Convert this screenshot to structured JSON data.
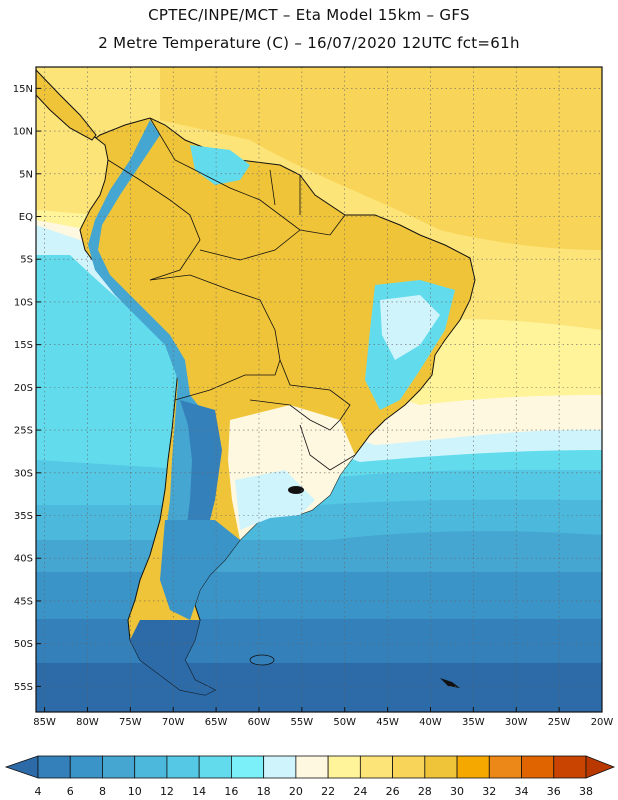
{
  "header": {
    "line1": "CPTEC/INPE/MCT –  Eta Model 15km – GFS",
    "line2": "2 Metre Temperature (C) – 16/07/2020 12UTC fct=61h"
  },
  "map": {
    "lat_labels": [
      "15N",
      "10N",
      "5N",
      "EQ",
      "5S",
      "10S",
      "15S",
      "20S",
      "25S",
      "30S",
      "35S",
      "40S",
      "45S",
      "50S",
      "55S"
    ],
    "lat_values": [
      15,
      10,
      5,
      0,
      -5,
      -10,
      -15,
      -20,
      -25,
      -30,
      -35,
      -40,
      -45,
      -50,
      -55
    ],
    "lon_labels": [
      "85W",
      "80W",
      "75W",
      "70W",
      "65W",
      "60W",
      "55W",
      "50W",
      "45W",
      "40W",
      "35W",
      "30W",
      "25W",
      "20W"
    ],
    "lon_values": [
      -85,
      -80,
      -75,
      -70,
      -65,
      -60,
      -55,
      -50,
      -45,
      -40,
      -35,
      -30,
      -25,
      -20
    ],
    "lat_range": [
      -58,
      17.5
    ],
    "lon_range": [
      -86,
      -20
    ]
  },
  "colorbar": {
    "labels": [
      "4",
      "6",
      "8",
      "10",
      "12",
      "14",
      "16",
      "18",
      "20",
      "22",
      "24",
      "26",
      "28",
      "30",
      "32",
      "34",
      "36",
      "38"
    ],
    "colors": [
      "#2c6aa8",
      "#3480ba",
      "#3b94c8",
      "#45a6d2",
      "#4cb8dc",
      "#54c8e4",
      "#62dcec",
      "#7cf0f8",
      "#d0f4fc",
      "#fff8e0",
      "#fff49a",
      "#fce478",
      "#f8d458",
      "#f0c438",
      "#f4a800",
      "#ec8818",
      "#e06400",
      "#c84400",
      "#b83800"
    ]
  },
  "colors": {
    "ocean_warm": "#f8d458",
    "ocean_mid": "#fff49a",
    "cool_band": "#d0f4fc",
    "ocean_cold": "#2c6aa8",
    "land_warm": "#f0c438",
    "land_cool": "#62dcec",
    "andes_cold": "#3480ba"
  }
}
